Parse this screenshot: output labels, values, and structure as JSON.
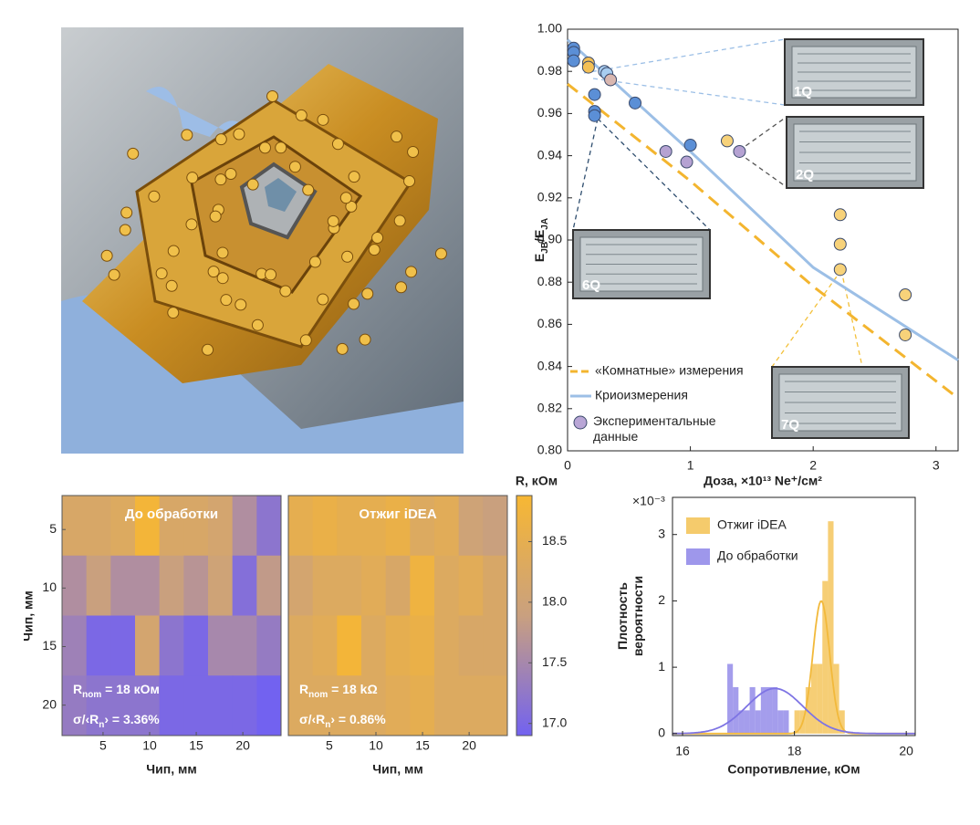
{
  "chart_data": [
    {
      "type": "line",
      "xlabel": "Доза, ×10¹³ Ne⁺/см²",
      "ylabel": [
        "E",
        "JB",
        "/E",
        "JA"
      ],
      "xlim": [
        0,
        3.18
      ],
      "ylim": [
        0.8,
        1.0
      ],
      "xticks": [
        0,
        1,
        2,
        3
      ],
      "yticks": [
        {
          "value": 0.8,
          "label": "0.80"
        },
        0.82,
        0.84,
        0.86,
        0.88,
        {
          "value": 0.9,
          "label": "0.90"
        },
        0.92,
        0.94,
        0.96,
        0.98,
        {
          "value": 1.0,
          "label": "1.00"
        }
      ],
      "series": [
        {
          "name": "«Комнатные» измерения",
          "type": "line",
          "dash": true,
          "color": "#f3b52f",
          "x": [
            0,
            1,
            2,
            3.18
          ],
          "values": [
            0.974,
            0.928,
            0.878,
            0.825
          ]
        },
        {
          "name": "Криоизмерения",
          "type": "line",
          "dash": false,
          "color": "#9cbfe6",
          "x": [
            0,
            1,
            2,
            3.18
          ],
          "values": [
            0.995,
            0.942,
            0.887,
            0.843
          ]
        },
        {
          "name": "Экспериментальные данные",
          "type": "scatter",
          "color": "#b9a6d6",
          "x": [
            0.05,
            0.05,
            0.05,
            0.22,
            0.22,
            0.22,
            0.55,
            1.0,
            0.3,
            0.32,
            0.17,
            0.17,
            0.35,
            1.3,
            2.22,
            2.22,
            2.22,
            2.75,
            2.75,
            0.8,
            0.97,
            1.4
          ],
          "values": [
            0.991,
            0.989,
            0.985,
            0.969,
            0.961,
            0.959,
            0.965,
            0.945,
            0.98,
            0.979,
            0.984,
            0.982,
            0.976,
            0.947,
            0.912,
            0.898,
            0.886,
            0.874,
            0.855,
            0.942,
            0.937,
            0.942
          ],
          "colors": [
            "#5b8fd6",
            "#5b8fd6",
            "#5b8fd6",
            "#5b8fd6",
            "#5b8fd6",
            "#5b8fd6",
            "#5b8fd6",
            "#5b8fd6",
            "#a8cdf0",
            "#a8cdf0",
            "#f4c055",
            "#f4c055",
            "#d9b7b0",
            "#f7d27a",
            "#f7d27a",
            "#f7d27a",
            "#f7d27a",
            "#f7d27a",
            "#f7d27a",
            "#b5a2d2",
            "#b5a2d2",
            "#b5a2d2"
          ]
        }
      ],
      "insets": [
        {
          "label": "1Q"
        },
        {
          "label": "2Q"
        },
        {
          "label": "6Q"
        },
        {
          "label": "7Q"
        }
      ]
    },
    {
      "type": "heatmap",
      "xlabel": "Чип, мм",
      "ylabel": "Чип, мм",
      "colorbar_label": "R, кОм",
      "xlim": [
        0.6,
        24.1
      ],
      "ylim": [
        2.1,
        22.6
      ],
      "xticks": [
        5,
        10,
        15,
        20
      ],
      "yticks": [
        5,
        10,
        15,
        20
      ],
      "zlim": [
        16.9,
        18.88
      ],
      "zticks": [
        {
          "value": 17,
          "label": "17.0"
        },
        17.5,
        {
          "value": 18,
          "label": "18.0"
        },
        18.5
      ],
      "colormap": [
        "#7262f0",
        "#c9a07f",
        "#f7b733"
      ],
      "panels": [
        {
          "title": "До обработки",
          "annotations": [
            [
              "R",
              "nom",
              " = 18 кОм"
            ],
            [
              "σ/‹R",
              "n",
              "› = 3.36%"
            ]
          ],
          "values": [
            [
              18.2,
              18.2,
              18.3,
              18.8,
              18.2,
              18.2,
              18.1,
              17.6,
              17.2
            ],
            [
              17.6,
              17.9,
              17.6,
              17.6,
              17.9,
              17.7,
              18.0,
              17.1,
              17.8
            ],
            [
              17.4,
              17.0,
              17.0,
              18.1,
              17.2,
              17.0,
              17.5,
              17.5,
              17.3
            ],
            [
              17.3,
              17.2,
              17.2,
              17.2,
              17.0,
              17.0,
              17.0,
              17.0,
              16.9
            ]
          ]
        },
        {
          "title": "Отжиг iDEA",
          "annotations": [
            [
              "R",
              "nom",
              " = 18 kΩ"
            ],
            [
              "σ/‹R",
              "n",
              "› = 0.86%"
            ]
          ],
          "values": [
            [
              18.5,
              18.6,
              18.5,
              18.5,
              18.6,
              18.3,
              18.4,
              18.0,
              17.9
            ],
            [
              18.1,
              18.3,
              18.3,
              18.4,
              18.2,
              18.7,
              18.3,
              18.4,
              18.2
            ],
            [
              18.3,
              18.4,
              18.8,
              18.3,
              18.5,
              18.6,
              18.3,
              18.2,
              18.2
            ],
            [
              18.3,
              18.3,
              18.3,
              18.3,
              18.4,
              18.5,
              18.3,
              18.3,
              18.3
            ]
          ]
        }
      ]
    },
    {
      "type": "histogram",
      "xlabel": "Сопротивление, кОм",
      "ylabel": "Плотность вероятности",
      "y_multiplier": "×10⁻³",
      "xlim": [
        15.82,
        20.16
      ],
      "ylim": [
        -0.03,
        3.56
      ],
      "xticks": [
        16,
        18,
        20
      ],
      "yticks": [
        0,
        1,
        2,
        3
      ],
      "series": [
        {
          "name": "Отжиг iDEA",
          "color": "#f2b93b",
          "bins": [
            18.0,
            18.1,
            18.2,
            18.3,
            18.4,
            18.5,
            18.6,
            18.7,
            18.8,
            18.9
          ],
          "counts": [
            0.35,
            0.35,
            0.7,
            1.05,
            1.05,
            2.3,
            3.2,
            1.05,
            0.35
          ],
          "fit": {
            "mean": 18.48,
            "sd": 0.15,
            "peak": 2.0
          }
        },
        {
          "name": "До обработки",
          "color": "#7e74e4",
          "bins": [
            16.8,
            16.9,
            17.0,
            17.1,
            17.2,
            17.3,
            17.4,
            17.5,
            17.6,
            17.7,
            17.8,
            17.9
          ],
          "counts": [
            1.05,
            0.7,
            0.35,
            0.35,
            0.7,
            0.35,
            0.7,
            0.7,
            0.7,
            0.35,
            0.35
          ],
          "fit": {
            "mean": 17.65,
            "sd": 0.5,
            "peak": 0.68
          }
        }
      ]
    }
  ]
}
